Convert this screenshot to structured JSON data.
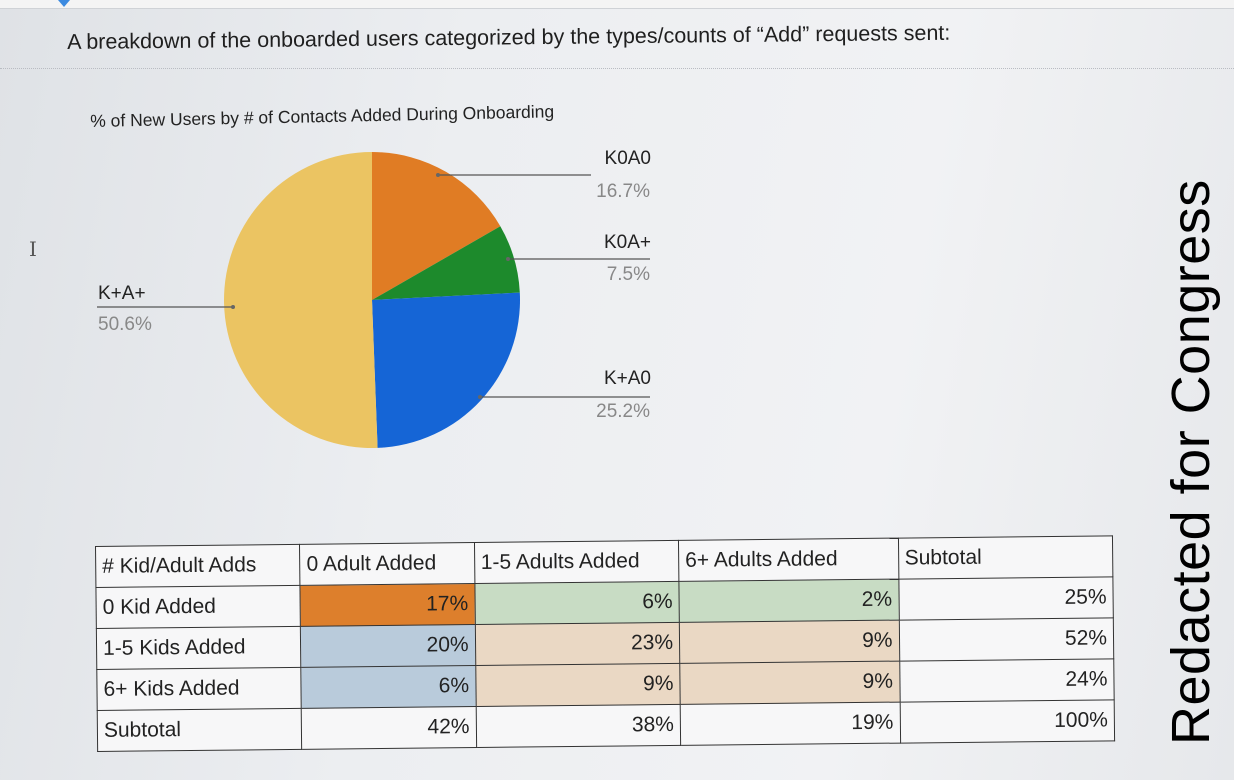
{
  "heading": "A breakdown of the onboarded users categorized by the types/counts of “Add” requests sent:",
  "watermark": "Redacted for Congress",
  "chart_data": {
    "type": "pie",
    "title": "% of New Users by # of Contacts Added During Onboarding",
    "slices": [
      {
        "label": "K0A0",
        "value_text": "16.7%",
        "value": 16.7,
        "color": "#e07c24"
      },
      {
        "label": "K0A+",
        "value_text": "7.5%",
        "value": 7.5,
        "color": "#1d8a2c"
      },
      {
        "label": "K+A0",
        "value_text": "25.2%",
        "value": 25.2,
        "color": "#1565d6"
      },
      {
        "label": "K+A+",
        "value_text": "50.6%",
        "value": 50.6,
        "color": "#ebc462"
      }
    ],
    "legend": "none",
    "labels": "outside-with-leader-lines"
  },
  "table": {
    "headers": [
      "# Kid/Adult Adds",
      "0 Adult Added",
      "1-5 Adults Added",
      "6+ Adults Added",
      "Subtotal"
    ],
    "rows": [
      {
        "label": "0 Kid Added",
        "cells": [
          "17%",
          "6%",
          "2%",
          "25%"
        ]
      },
      {
        "label": "1-5 Kids Added",
        "cells": [
          "20%",
          "23%",
          "9%",
          "52%"
        ]
      },
      {
        "label": "6+ Kids Added",
        "cells": [
          "6%",
          "9%",
          "9%",
          "24%"
        ]
      },
      {
        "label": "Subtotal",
        "cells": [
          "42%",
          "38%",
          "19%",
          "100%"
        ]
      }
    ],
    "cell_colors": {
      "orange_strong": "#dd7f2c",
      "green_light": "#c8dcc4",
      "blue_light": "#b9cbdb",
      "tan_light": "#ead8c4"
    }
  }
}
